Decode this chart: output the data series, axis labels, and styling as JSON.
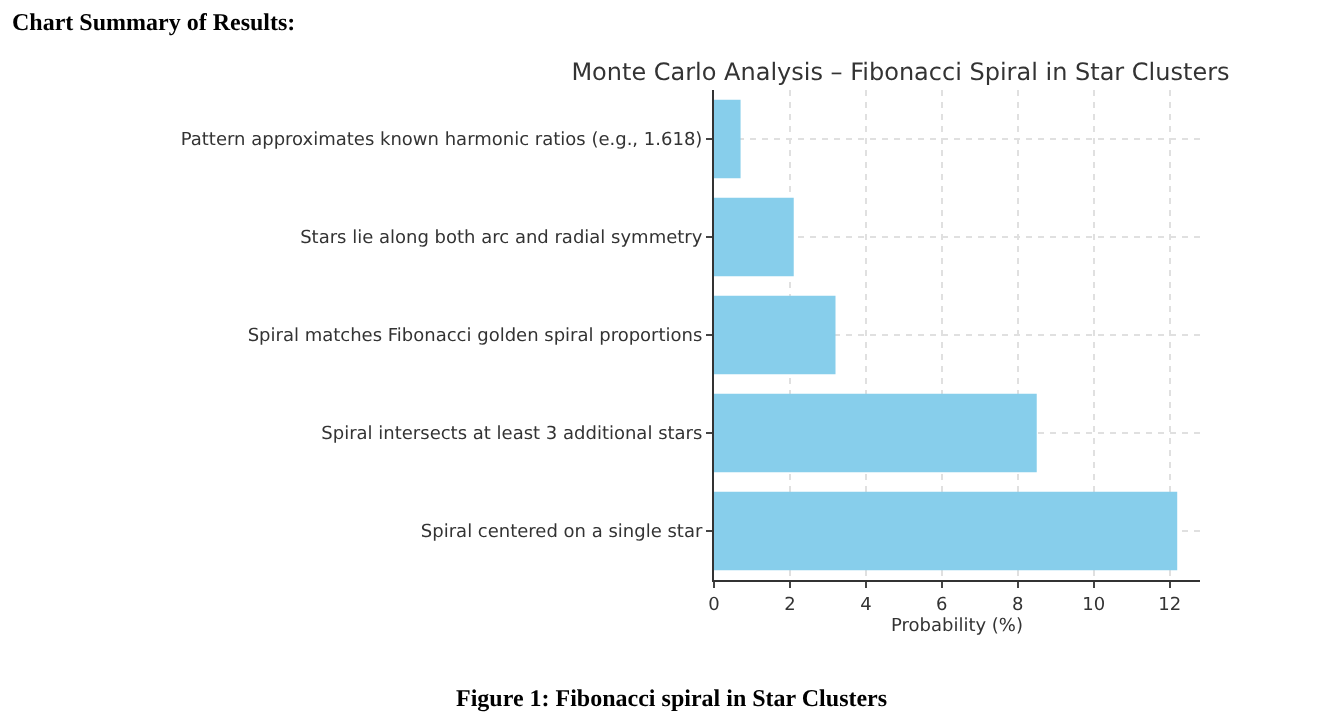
{
  "chart_data": {
    "type": "bar",
    "orientation": "horizontal",
    "title": "Monte Carlo Analysis – Fibonacci Spiral in Star Clusters",
    "xlabel": "Probability (%)",
    "categories": [
      "Pattern approximates known harmonic ratios (e.g., 1.618)",
      "Stars lie along both arc and radial symmetry",
      "Spiral matches Fibonacci golden spiral proportions",
      "Spiral intersects at least 3 additional stars",
      "Spiral centered on a single star"
    ],
    "values": [
      0.7,
      2.1,
      3.2,
      8.5,
      12.2
    ],
    "color": "#87ceeb",
    "xlim": [
      0,
      12.8
    ],
    "xticks": [
      0,
      2,
      4,
      6,
      8,
      10,
      12
    ],
    "grid": true,
    "legend": false,
    "annotations": [
      "Chart Summary of Results:",
      "Figure 1: Fibonacci spiral in Star Clusters"
    ]
  }
}
